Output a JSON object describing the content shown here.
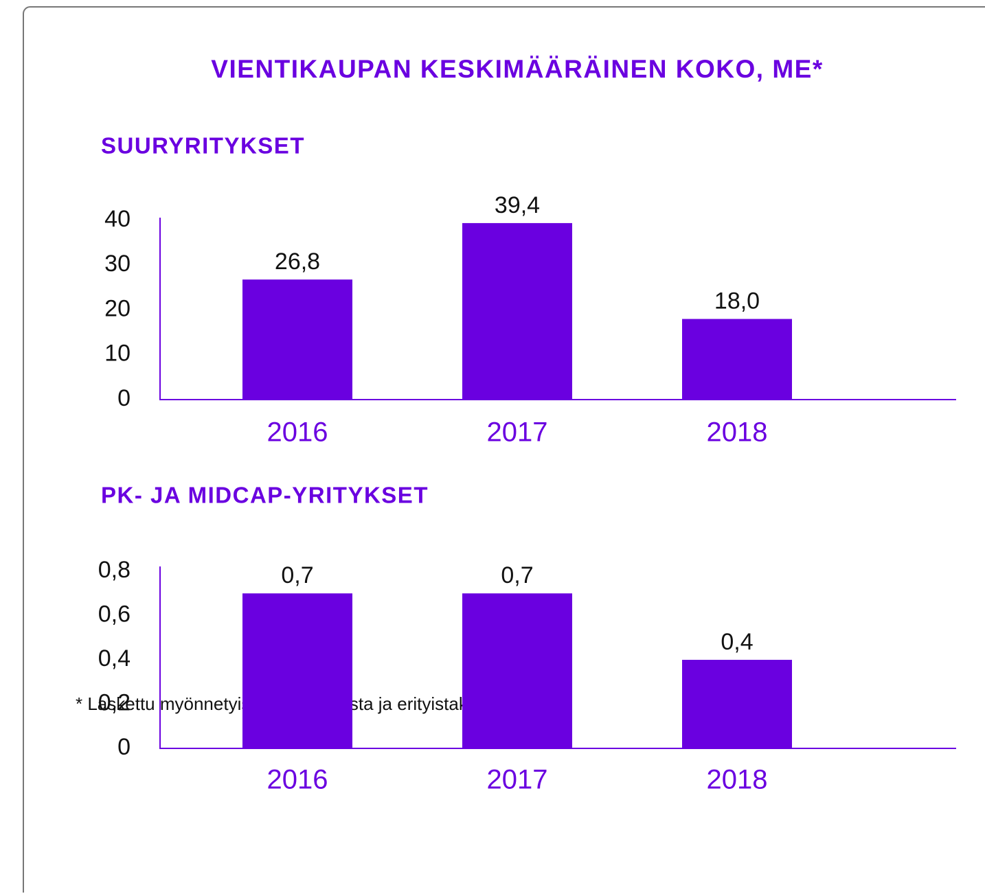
{
  "title": "VIENTIKAUPAN KESKIMÄÄRÄINEN KOKO, ME*",
  "footnote": "* Laskettu myönnetyistä vientitakuista ja erityistakauksista",
  "chart_data": [
    {
      "type": "bar",
      "title": "SUURYRITYKSET",
      "categories": [
        "2016",
        "2017",
        "2018"
      ],
      "values": [
        26.8,
        39.4,
        18.0
      ],
      "value_labels": [
        "26,8",
        "39,4",
        "18,0"
      ],
      "color": "#6a00e0",
      "ylim": [
        0,
        40
      ],
      "yticks": [
        0,
        10,
        20,
        30,
        40
      ]
    },
    {
      "type": "bar",
      "title": "PK- JA MIDCAP-YRITYKSET",
      "categories": [
        "2016",
        "2017",
        "2018"
      ],
      "values": [
        0.7,
        0.7,
        0.4
      ],
      "value_labels": [
        "0,7",
        "0,7",
        "0,4"
      ],
      "color": "#6a00e0",
      "ylim": [
        0,
        0.8
      ],
      "yticks": [
        0,
        {
          "value": 0.2,
          "label": "0,2"
        },
        {
          "value": 0.4,
          "label": "0,4"
        },
        {
          "value": 0.6,
          "label": "0,6"
        },
        {
          "value": 0.8,
          "label": "0,8"
        }
      ]
    }
  ]
}
